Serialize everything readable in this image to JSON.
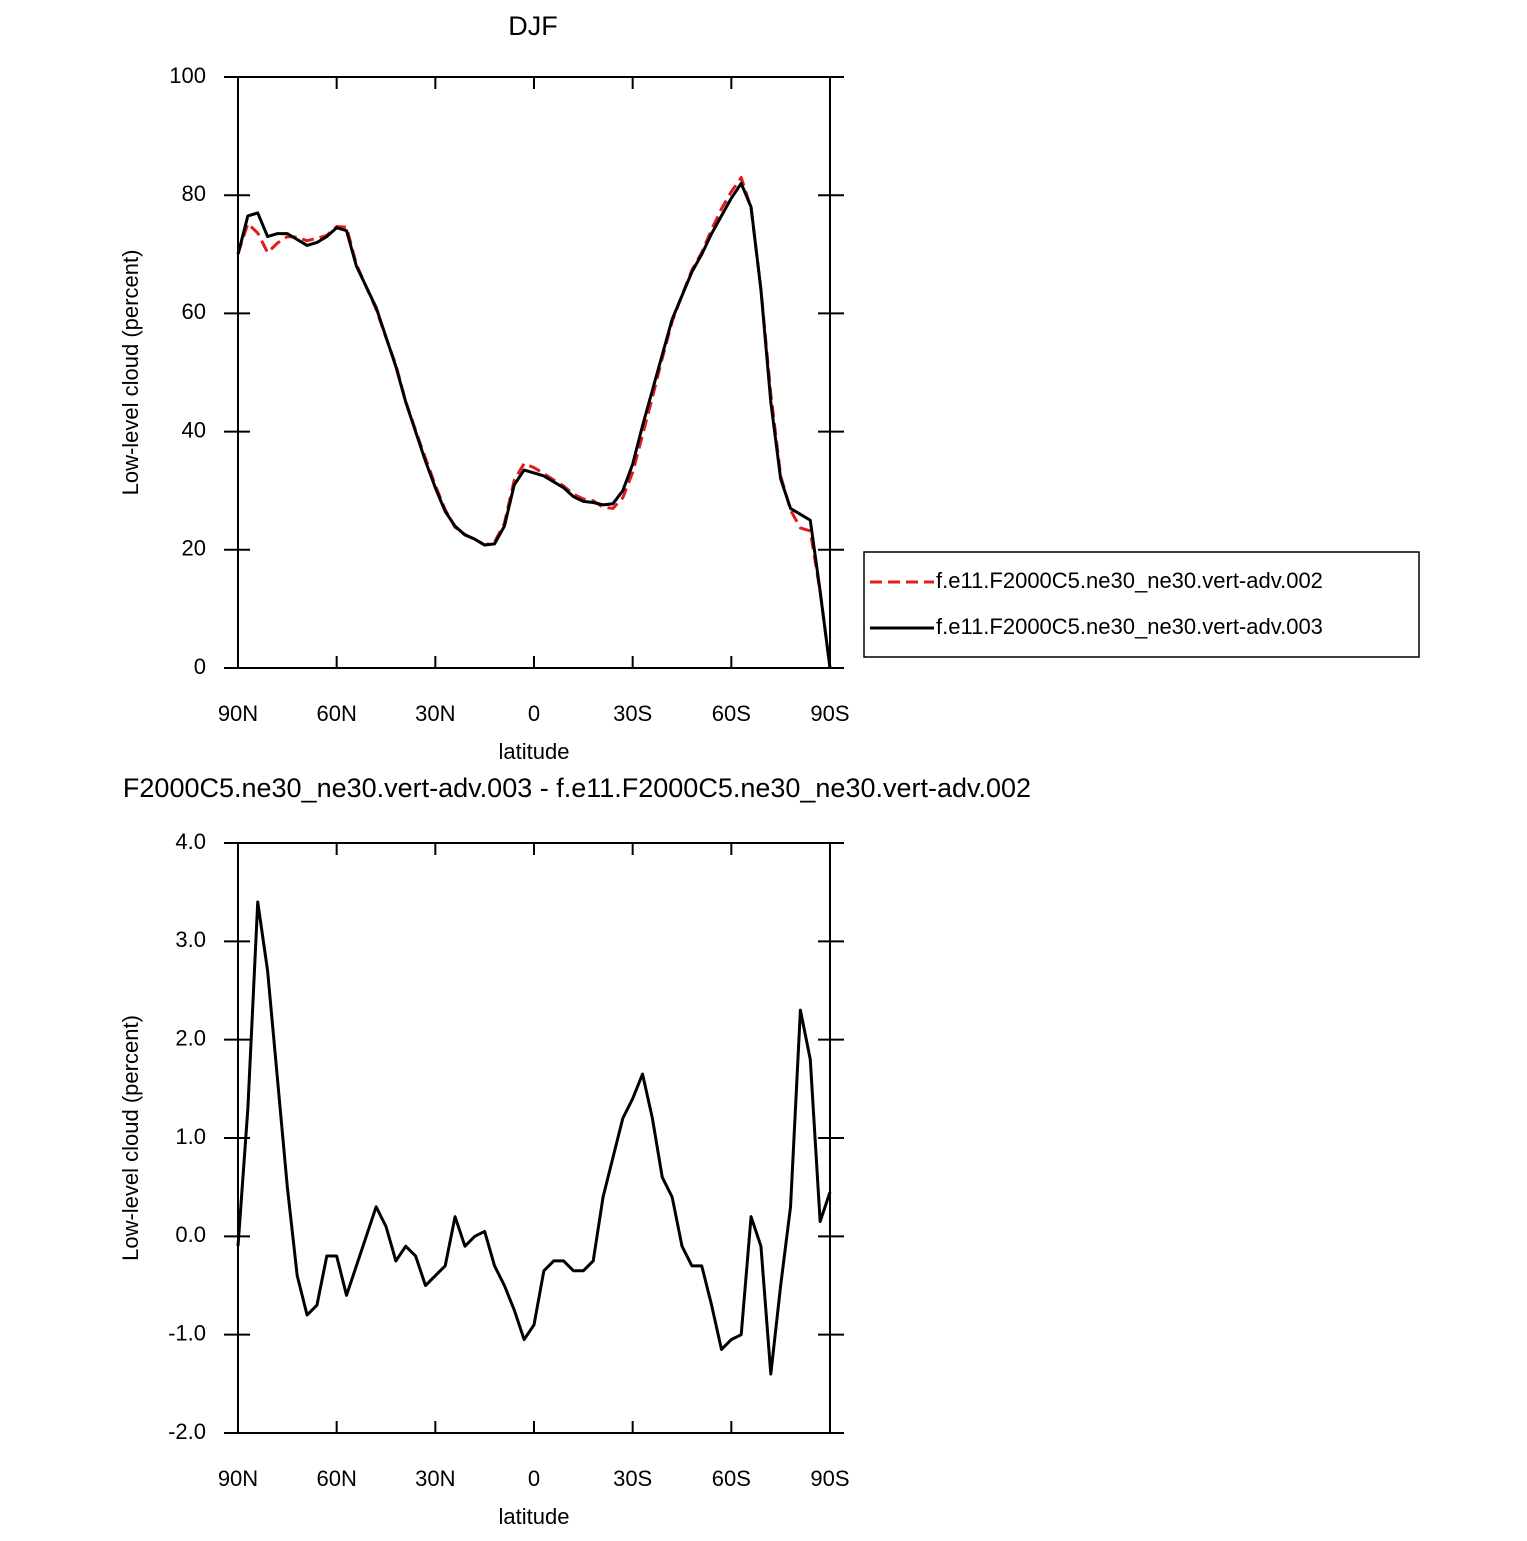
{
  "chart_data": [
    {
      "type": "line",
      "title": "DJF",
      "xlabel": "latitude",
      "ylabel": "Low-level cloud (percent)",
      "x": [
        90,
        87,
        84,
        81,
        78,
        75,
        72,
        69,
        66,
        63,
        60,
        57,
        54,
        51,
        48,
        45,
        42,
        39,
        36,
        33,
        30,
        27,
        24,
        21,
        18,
        15,
        12,
        9,
        6,
        3,
        0,
        -3,
        -6,
        -9,
        -12,
        -15,
        -18,
        -21,
        -24,
        -27,
        -30,
        -33,
        -36,
        -39,
        -42,
        -45,
        -48,
        -51,
        -54,
        -57,
        -60,
        -63,
        -66,
        -69,
        -72,
        -75,
        -78,
        -81,
        -84,
        -87,
        -90
      ],
      "series": [
        {
          "name": "f.e11.F2000C5.ne30_ne30.vert-adv.002",
          "color": "#e41a1c",
          "dash": true,
          "values": [
            70.1,
            75.2,
            73.6,
            70.3,
            71.9,
            73.0,
            72.9,
            72.3,
            72.7,
            73.2,
            74.7,
            74.6,
            68.3,
            64.5,
            60.7,
            55.9,
            51.3,
            45.1,
            40.2,
            35.5,
            30.9,
            26.8,
            23.8,
            22.6,
            21.8,
            20.8,
            21.3,
            24.5,
            31.8,
            34.6,
            33.9,
            32.9,
            31.8,
            30.8,
            29.4,
            28.6,
            28.3,
            27.2,
            27.0,
            28.8,
            33.1,
            39.4,
            45.8,
            52.4,
            58.6,
            63.1,
            67.3,
            70.3,
            74.2,
            77.7,
            80.6,
            83.0,
            77.8,
            64.1,
            46.4,
            32.5,
            26.7,
            23.7,
            23.2,
            12.9,
            0
          ]
        },
        {
          "name": "f.e11.F2000C5.ne30_ne30.vert-adv.003",
          "color": "#000000",
          "dash": false,
          "values": [
            70,
            76.5,
            77,
            73,
            73.5,
            73.5,
            72.5,
            71.5,
            72,
            73,
            74.5,
            74,
            68,
            64.5,
            61,
            56,
            51,
            45,
            40,
            35,
            30.5,
            26.5,
            24,
            22.5,
            21.8,
            20.8,
            21,
            24,
            31,
            33.5,
            33,
            32.5,
            31.5,
            30.5,
            29,
            28.2,
            28,
            27.6,
            27.8,
            30,
            34.5,
            41,
            47,
            53,
            59,
            63,
            67,
            70,
            73.5,
            76.5,
            79.5,
            82,
            78,
            64,
            45,
            32,
            27,
            26,
            25,
            13,
            0
          ]
        }
      ],
      "xlim": [
        90,
        -90
      ],
      "xticks": [
        {
          "value": 90,
          "label": "90N"
        },
        {
          "value": 60,
          "label": "60N"
        },
        {
          "value": 30,
          "label": "30N"
        },
        0,
        {
          "value": -30,
          "label": "30S"
        },
        {
          "value": -60,
          "label": "60S"
        },
        {
          "value": -90,
          "label": "90S"
        }
      ],
      "ylim": [
        0,
        100
      ],
      "yticks": [
        0,
        20,
        40,
        60,
        80,
        100
      ],
      "legend": "right"
    },
    {
      "type": "line",
      "title": "F2000C5.ne30_ne30.vert-adv.003 - f.e11.F2000C5.ne30_ne30.vert-adv.002",
      "xlabel": "latitude",
      "ylabel": "Low-level cloud (percent)",
      "x": [
        90,
        87,
        84,
        81,
        78,
        75,
        72,
        69,
        66,
        63,
        60,
        57,
        54,
        51,
        48,
        45,
        42,
        39,
        36,
        33,
        30,
        27,
        24,
        21,
        18,
        15,
        12,
        9,
        6,
        3,
        0,
        -3,
        -6,
        -9,
        -12,
        -15,
        -18,
        -21,
        -24,
        -27,
        -30,
        -33,
        -36,
        -39,
        -42,
        -45,
        -48,
        -51,
        -54,
        -57,
        -60,
        -63,
        -66,
        -69,
        -72,
        -75,
        -78,
        -81,
        -84,
        -87,
        -90
      ],
      "values": [
        -0.1,
        1.3,
        3.4,
        2.7,
        1.6,
        0.5,
        -0.4,
        -0.8,
        -0.7,
        -0.2,
        -0.2,
        -0.6,
        -0.3,
        0,
        0.3,
        0.1,
        -0.25,
        -0.1,
        -0.2,
        -0.5,
        -0.4,
        -0.3,
        0.2,
        -0.1,
        0,
        0.05,
        -0.3,
        -0.5,
        -0.75,
        -1.05,
        -0.9,
        -0.35,
        -0.25,
        -0.25,
        -0.35,
        -0.35,
        -0.25,
        0.4,
        0.8,
        1.2,
        1.4,
        1.65,
        1.2,
        0.6,
        0.4,
        -0.1,
        -0.3,
        -0.3,
        -0.7,
        -1.15,
        -1.05,
        -1.0,
        0.2,
        -0.1,
        -1.4,
        -0.5,
        0.3,
        2.3,
        1.8,
        0.15,
        0.45
      ],
      "color": "#000000",
      "xlim": [
        90,
        -90
      ],
      "xticks": [
        {
          "value": 90,
          "label": "90N"
        },
        {
          "value": 60,
          "label": "60N"
        },
        {
          "value": 30,
          "label": "30N"
        },
        0,
        {
          "value": -30,
          "label": "30S"
        },
        {
          "value": -60,
          "label": "60S"
        },
        {
          "value": -90,
          "label": "90S"
        }
      ],
      "ylim": [
        -2,
        4
      ],
      "yticks": [
        {
          "value": -2,
          "label": "-2.0"
        },
        {
          "value": -1,
          "label": "-1.0"
        },
        {
          "value": 0,
          "label": "0.0"
        },
        {
          "value": 1,
          "label": "1.0"
        },
        {
          "value": 2,
          "label": "2.0"
        },
        {
          "value": 3,
          "label": "3.0"
        },
        {
          "value": 4,
          "label": "4.0"
        }
      ]
    }
  ]
}
